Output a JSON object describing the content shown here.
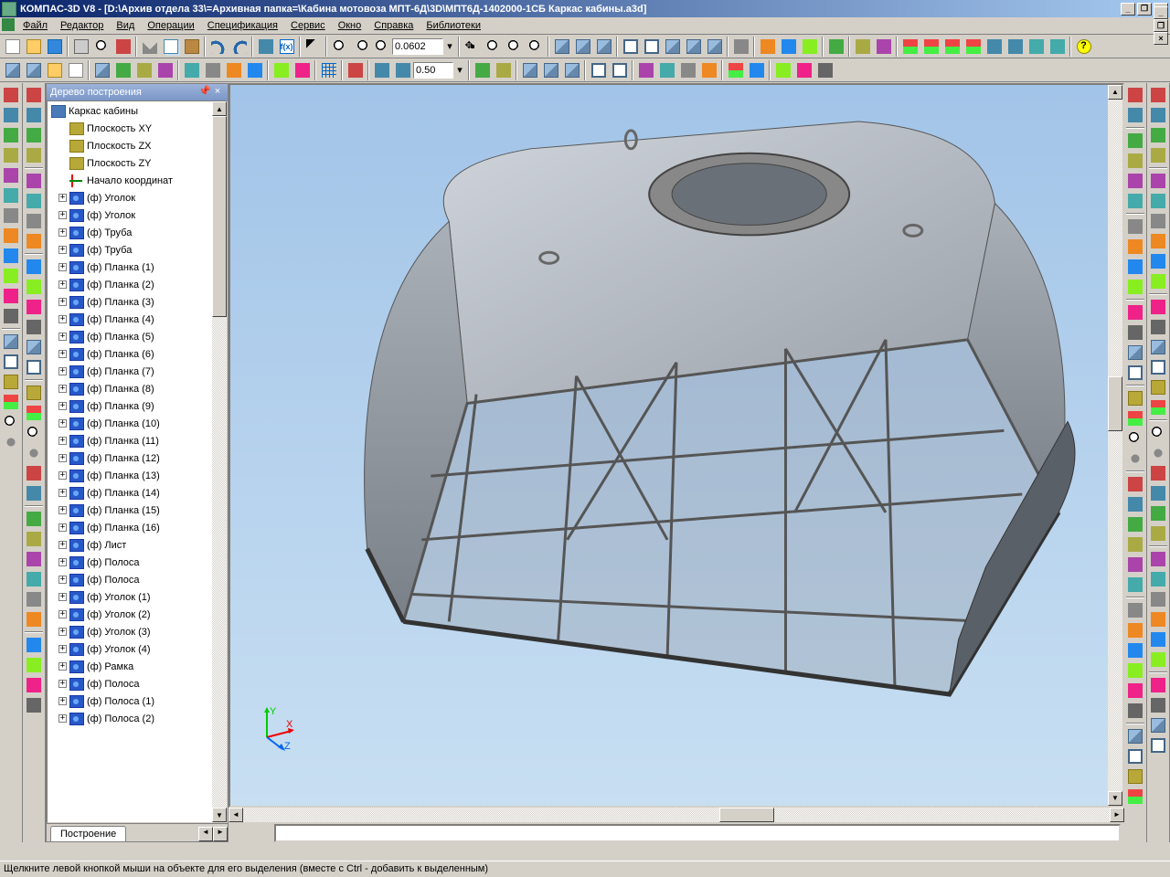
{
  "title": "КОМПАС-3D V8 - [D:\\Архив отдела 33\\=Архивная папка=\\Кабина мотовоза МПТ-6Д\\3D\\МПТ6Д-1402000-1СБ Каркас кабины.a3d]",
  "menu": [
    "Файл",
    "Редактор",
    "Вид",
    "Операции",
    "Спецификация",
    "Сервис",
    "Окно",
    "Справка",
    "Библиотеки"
  ],
  "toolbar1_scale": "0.0602",
  "toolbar2_step": "0.50",
  "tree_title": "Дерево построения",
  "tree_root": "Каркас кабины",
  "tree_planes": [
    {
      "label": "Плоскость XY",
      "type": "plane"
    },
    {
      "label": "Плоскость ZX",
      "type": "plane"
    },
    {
      "label": "Плоскость ZY",
      "type": "plane"
    },
    {
      "label": "Начало координат",
      "type": "axis"
    }
  ],
  "tree_parts": [
    "(ф) Уголок",
    "(ф) Уголок",
    "(ф) Труба",
    "(ф) Труба",
    "(ф) Планка (1)",
    "(ф) Планка (2)",
    "(ф) Планка (3)",
    "(ф) Планка (4)",
    "(ф) Планка (5)",
    "(ф) Планка (6)",
    "(ф) Планка (7)",
    "(ф) Планка (8)",
    "(ф) Планка (9)",
    "(ф) Планка (10)",
    "(ф) Планка (11)",
    "(ф) Планка (12)",
    "(ф) Планка (13)",
    "(ф) Планка (14)",
    "(ф) Планка (15)",
    "(ф) Планка (16)",
    "(ф) Лист",
    "(ф) Полоса",
    "(ф) Полоса",
    "(ф) Уголок (1)",
    "(ф) Уголок (2)",
    "(ф) Уголок (3)",
    "(ф) Уголок (4)",
    "(ф) Рамка",
    "(ф) Полоса",
    "(ф) Полоса (1)",
    "(ф) Полоса (2)"
  ],
  "tree_tab": "Построение",
  "status": "Щелкните левой кнопкой мыши на объекте для его выделения (вместе с Ctrl - добавить к выделенным)",
  "axis_labels": {
    "x": "X",
    "y": "Y",
    "z": "Z"
  },
  "colors": {
    "titlebar_start": "#0a246a",
    "titlebar_end": "#a6caf0",
    "chrome": "#d4d0c8",
    "viewport_top": "#a2c4e8",
    "viewport_bottom": "#c8dff2",
    "model_base": "#9aa0a8",
    "model_light": "#c8cdd4",
    "model_dark": "#6a7078"
  }
}
